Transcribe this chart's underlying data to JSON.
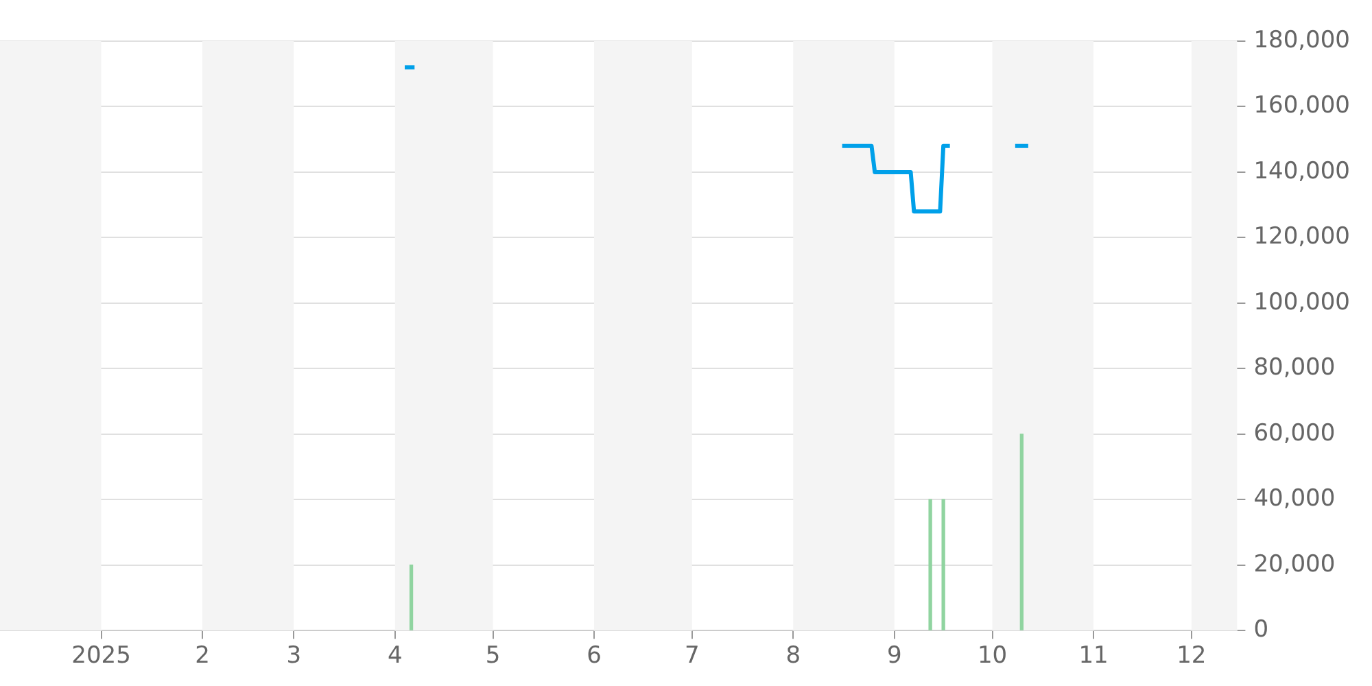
{
  "chart_data": {
    "type": "line",
    "xlim": [
      "2024-12-01",
      "2025-12-15"
    ],
    "xticks": [
      {
        "value": "2025-01-01",
        "label": "2025"
      },
      {
        "value": "2025-02-01",
        "label": "2"
      },
      {
        "value": "2025-03-01",
        "label": "3"
      },
      {
        "value": "2025-04-01",
        "label": "4"
      },
      {
        "value": "2025-05-01",
        "label": "5"
      },
      {
        "value": "2025-06-01",
        "label": "6"
      },
      {
        "value": "2025-07-01",
        "label": "7"
      },
      {
        "value": "2025-08-01",
        "label": "8"
      },
      {
        "value": "2025-09-01",
        "label": "9"
      },
      {
        "value": "2025-10-01",
        "label": "10"
      },
      {
        "value": "2025-11-01",
        "label": "11"
      },
      {
        "value": "2025-12-01",
        "label": "12"
      }
    ],
    "ylim": [
      0,
      180000
    ],
    "yticks": [
      0,
      {
        "value": 20000,
        "label": "20,000"
      },
      {
        "value": 40000,
        "label": "40,000"
      },
      {
        "value": 60000,
        "label": "60,000"
      },
      {
        "value": 80000,
        "label": "80,000"
      },
      {
        "value": 100000,
        "label": "100,000"
      },
      {
        "value": 120000,
        "label": "120,000"
      },
      {
        "value": 140000,
        "label": "140,000"
      },
      {
        "value": 160000,
        "label": "160,000"
      },
      {
        "value": 180000,
        "label": "180,000"
      }
    ],
    "grid": "y",
    "legend": false,
    "marker": "none",
    "bands": [
      {
        "axis": "x",
        "from": "2024-12-01",
        "to": "2025-01-01",
        "color": "#f4f4f4"
      },
      {
        "axis": "x",
        "from": "2025-02-01",
        "to": "2025-03-01",
        "color": "#f4f4f4"
      },
      {
        "axis": "x",
        "from": "2025-04-01",
        "to": "2025-05-01",
        "color": "#f4f4f4"
      },
      {
        "axis": "x",
        "from": "2025-06-01",
        "to": "2025-07-01",
        "color": "#f4f4f4"
      },
      {
        "axis": "x",
        "from": "2025-08-01",
        "to": "2025-09-01",
        "color": "#f4f4f4"
      },
      {
        "axis": "x",
        "from": "2025-10-01",
        "to": "2025-11-01",
        "color": "#f4f4f4"
      },
      {
        "axis": "x",
        "from": "2025-12-01",
        "to": "2025-12-15",
        "color": "#f4f4f4"
      }
    ],
    "series": [
      {
        "color": "#00a0e9",
        "x": [
          "2025-04-04",
          "2025-04-07",
          "2025-04-08",
          "2025-08-16",
          "2025-08-25",
          "2025-08-26",
          "2025-09-06",
          "2025-09-07",
          "2025-09-15",
          "2025-09-16",
          "2025-09-18",
          "2025-09-19",
          "2025-10-08",
          "2025-10-12"
        ],
        "values": [
          172000,
          172000,
          null,
          148000,
          148000,
          140000,
          140000,
          128000,
          128000,
          148000,
          148000,
          null,
          148000,
          148000
        ]
      },
      {
        "type": "bar",
        "color": "#90d4a0",
        "x": [
          "2025-04-06",
          "2025-09-12",
          "2025-09-16",
          "2025-10-10"
        ],
        "values": [
          20000,
          40000,
          40000,
          60000
        ]
      }
    ]
  }
}
